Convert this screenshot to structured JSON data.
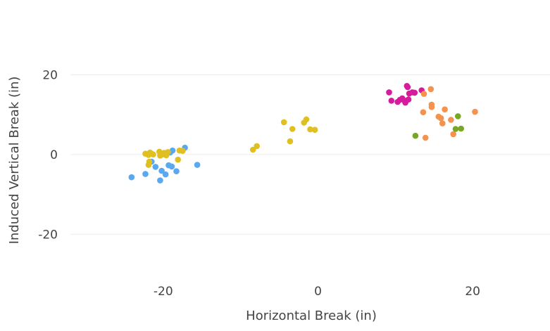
{
  "chart_data": {
    "type": "scatter",
    "title": "",
    "xlabel": "Horizontal Break (in)",
    "ylabel": "Induced Vertical Break (in)",
    "xlim": [
      -32,
      30
    ],
    "ylim": [
      -30,
      31
    ],
    "x_ticks": [
      -20,
      0,
      20
    ],
    "y_ticks": [
      -20,
      0,
      20
    ],
    "x_tick_labels": [
      "-20",
      "0",
      "20"
    ],
    "y_tick_labels": [
      "-20",
      "0",
      "20"
    ],
    "grid": "horizontal",
    "legend": "none",
    "series": [
      {
        "name": "series-blue",
        "color": "#5aa8f0",
        "points": [
          {
            "x": -24.1,
            "y": -5.7
          },
          {
            "x": -22.3,
            "y": -4.9
          },
          {
            "x": -21.5,
            "y": -1.8
          },
          {
            "x": -21.0,
            "y": -3.1
          },
          {
            "x": -20.4,
            "y": -6.5
          },
          {
            "x": -20.2,
            "y": -4.1
          },
          {
            "x": -19.7,
            "y": -5.0
          },
          {
            "x": -19.3,
            "y": -2.7
          },
          {
            "x": -18.9,
            "y": -3.0
          },
          {
            "x": -19.1,
            "y": 0.5
          },
          {
            "x": -18.8,
            "y": 1.0
          },
          {
            "x": -18.3,
            "y": -4.2
          },
          {
            "x": -17.2,
            "y": 1.7
          },
          {
            "x": -15.6,
            "y": -2.6
          }
        ]
      },
      {
        "name": "series-yellow",
        "color": "#e0c021",
        "points": [
          {
            "x": -22.3,
            "y": 0.2
          },
          {
            "x": -21.9,
            "y": -0.1
          },
          {
            "x": -21.7,
            "y": 0.5
          },
          {
            "x": -21.5,
            "y": 0.2
          },
          {
            "x": -21.3,
            "y": 0.0
          },
          {
            "x": -21.9,
            "y": -2.6
          },
          {
            "x": -21.8,
            "y": -1.8
          },
          {
            "x": -20.5,
            "y": 0.7
          },
          {
            "x": -20.4,
            "y": -0.3
          },
          {
            "x": -20.1,
            "y": 0.0
          },
          {
            "x": -19.9,
            "y": 0.4
          },
          {
            "x": -19.6,
            "y": -0.2
          },
          {
            "x": -19.4,
            "y": 0.6
          },
          {
            "x": -18.1,
            "y": -1.3
          },
          {
            "x": -17.9,
            "y": 1.0
          },
          {
            "x": -17.5,
            "y": 0.9
          },
          {
            "x": -8.4,
            "y": 1.2
          },
          {
            "x": -7.9,
            "y": 2.1
          },
          {
            "x": -4.4,
            "y": 8.1
          },
          {
            "x": -3.6,
            "y": 3.3
          },
          {
            "x": -3.3,
            "y": 6.4
          },
          {
            "x": -1.8,
            "y": 8.0
          },
          {
            "x": -1.5,
            "y": 8.8
          },
          {
            "x": -1.0,
            "y": 6.3
          },
          {
            "x": -0.4,
            "y": 6.2
          }
        ]
      },
      {
        "name": "series-magenta",
        "color": "#d61b9c",
        "points": [
          {
            "x": 9.2,
            "y": 15.6
          },
          {
            "x": 9.5,
            "y": 13.5
          },
          {
            "x": 10.3,
            "y": 13.2
          },
          {
            "x": 10.6,
            "y": 13.7
          },
          {
            "x": 10.9,
            "y": 14.1
          },
          {
            "x": 11.2,
            "y": 13.5
          },
          {
            "x": 11.3,
            "y": 13.0
          },
          {
            "x": 11.5,
            "y": 17.2
          },
          {
            "x": 11.6,
            "y": 16.9
          },
          {
            "x": 11.7,
            "y": 13.8
          },
          {
            "x": 11.8,
            "y": 15.3
          },
          {
            "x": 12.2,
            "y": 15.6
          },
          {
            "x": 12.5,
            "y": 15.5
          },
          {
            "x": 13.4,
            "y": 16.1
          }
        ]
      },
      {
        "name": "series-orange",
        "color": "#f5924e",
        "points": [
          {
            "x": 13.6,
            "y": 10.6
          },
          {
            "x": 13.7,
            "y": 15.2
          },
          {
            "x": 13.9,
            "y": 4.2
          },
          {
            "x": 14.6,
            "y": 16.4
          },
          {
            "x": 14.7,
            "y": 12.5
          },
          {
            "x": 14.7,
            "y": 11.9
          },
          {
            "x": 15.6,
            "y": 9.5
          },
          {
            "x": 15.9,
            "y": 9.1
          },
          {
            "x": 16.1,
            "y": 7.8
          },
          {
            "x": 16.4,
            "y": 11.3
          },
          {
            "x": 17.2,
            "y": 8.7
          },
          {
            "x": 17.5,
            "y": 5.1
          },
          {
            "x": 20.3,
            "y": 10.7
          }
        ]
      },
      {
        "name": "series-green",
        "color": "#78a823",
        "points": [
          {
            "x": 12.6,
            "y": 4.7
          },
          {
            "x": 17.8,
            "y": 6.4
          },
          {
            "x": 18.1,
            "y": 9.6
          },
          {
            "x": 18.5,
            "y": 6.5
          }
        ]
      }
    ]
  }
}
